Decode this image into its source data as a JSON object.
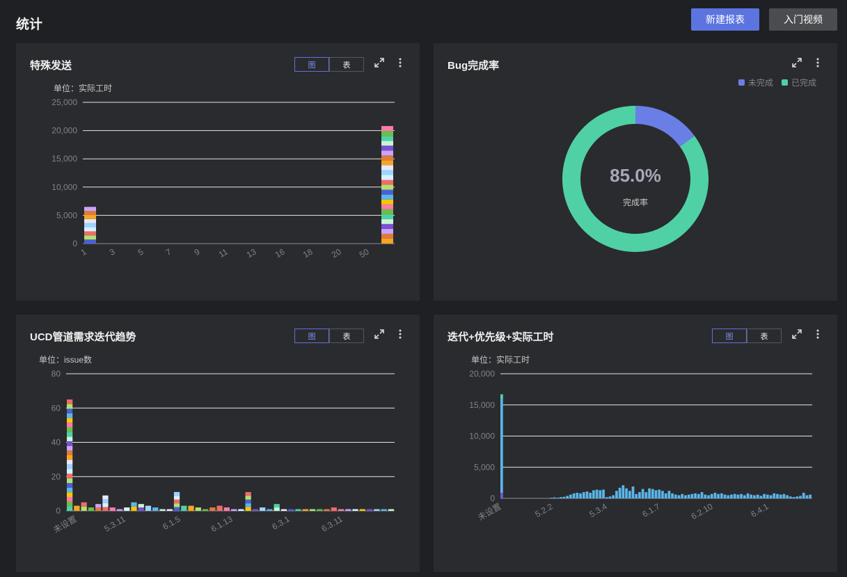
{
  "page": {
    "title": "统计",
    "new_report_label": "新建报表",
    "intro_video_label": "入门视频"
  },
  "toggle": {
    "chart_label": "图",
    "table_label": "表"
  },
  "icons": {
    "expand": "expand-icon",
    "more": "more-vertical-icon"
  },
  "colors": {
    "accent": "#5b74e0",
    "incomplete": "#6a7fe6",
    "complete": "#4fd1a5",
    "bar": "#5ab6ea"
  },
  "cards": [
    {
      "title": "特殊发送",
      "unit": "单位：实际工时",
      "chart_data": {
        "type": "bar",
        "stacked": true,
        "ylim": [
          0,
          25000
        ],
        "yticks": [
          "0",
          "5,000",
          "10,000",
          "15,000",
          "20,000",
          "25,000"
        ],
        "xticks": [
          "1",
          "3",
          "5",
          "7",
          "9",
          "11",
          "13",
          "16",
          "18",
          "20",
          "50"
        ],
        "bars": [
          {
            "x": "1",
            "total": 6500
          },
          {
            "x": "50",
            "total": 20800
          }
        ]
      }
    },
    {
      "title": "Bug完成率",
      "center_value": "85.0%",
      "center_label": "完成率",
      "legend": [
        "未完成",
        "已完成"
      ],
      "chart_data": {
        "type": "pie",
        "donut": true,
        "slices": [
          {
            "name": "未完成",
            "value": 15
          },
          {
            "name": "已完成",
            "value": 85
          }
        ]
      }
    },
    {
      "title": "UCD管道需求迭代趋势",
      "unit": "单位：issue数",
      "chart_data": {
        "type": "bar",
        "stacked": true,
        "ylim": [
          0,
          80
        ],
        "yticks": [
          "0",
          "20",
          "40",
          "60",
          "80"
        ],
        "xticks": [
          "未设置",
          "5.3.11",
          "6.1.5",
          "6.1.13",
          "6.3.1",
          "6.3.11"
        ],
        "values": [
          65,
          3,
          5,
          2,
          4,
          9,
          2,
          1,
          2,
          5,
          4,
          3,
          2,
          1,
          1,
          11,
          3,
          3,
          2,
          1,
          2,
          3,
          2,
          1,
          1,
          11,
          1,
          2,
          1,
          4,
          1,
          1,
          1,
          1,
          1,
          1,
          1,
          2,
          1,
          1,
          1,
          1,
          1,
          1,
          1,
          1
        ]
      }
    },
    {
      "title": "迭代+优先级+实际工时",
      "unit": "单位：实际工时",
      "chart_data": {
        "type": "bar",
        "ylim": [
          0,
          20000
        ],
        "yticks": [
          "0",
          "5,000",
          "10,000",
          "15,000",
          "20,000"
        ],
        "xticks": [
          "未设置",
          "5.2.2",
          "5.3.4",
          "6.1.7",
          "6.2.10",
          "6.4.1"
        ],
        "values": [
          16700,
          0,
          0,
          0,
          0,
          0,
          0,
          0,
          0,
          0,
          0,
          0,
          0,
          0,
          0,
          100,
          150,
          100,
          200,
          250,
          400,
          600,
          800,
          900,
          800,
          1000,
          1100,
          900,
          1300,
          1400,
          1300,
          1400,
          200,
          300,
          500,
          1200,
          1700,
          2100,
          1600,
          1200,
          1900,
          700,
          1000,
          1500,
          1000,
          1600,
          1500,
          1300,
          1400,
          1200,
          800,
          1200,
          800,
          600,
          500,
          700,
          500,
          600,
          700,
          800,
          700,
          1000,
          600,
          500,
          700,
          900,
          700,
          800,
          600,
          500,
          600,
          700,
          600,
          700,
          500,
          800,
          600,
          500,
          600,
          400,
          700,
          600,
          500,
          800,
          700,
          600,
          700,
          500,
          300,
          200,
          300,
          400,
          900,
          500,
          600
        ]
      }
    }
  ]
}
